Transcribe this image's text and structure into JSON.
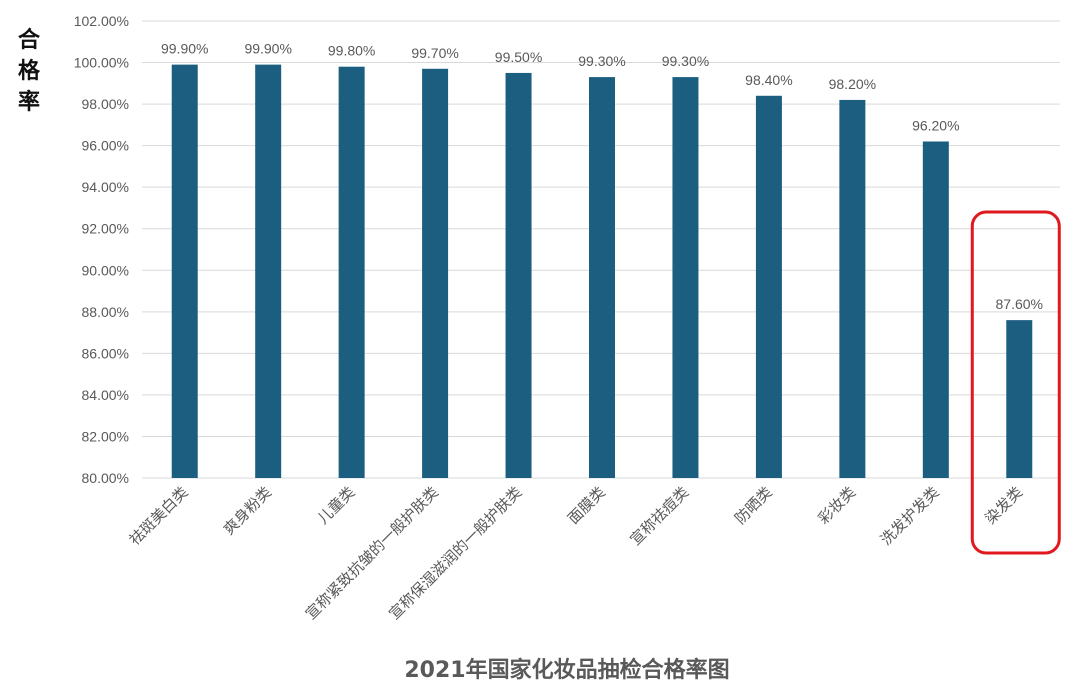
{
  "chart_data": {
    "type": "bar",
    "title": "2021年国家化妆品抽检合格率图",
    "ylabel": "合格率",
    "xlabel": "",
    "ylim": [
      80,
      102
    ],
    "ytick_step": 2,
    "ytick_labels": [
      "80.00%",
      "82.00%",
      "84.00%",
      "86.00%",
      "88.00%",
      "90.00%",
      "92.00%",
      "94.00%",
      "96.00%",
      "98.00%",
      "100.00%",
      "102.00%"
    ],
    "grid": true,
    "categories": [
      "祛斑美白类",
      "爽身粉类",
      "儿童类",
      "宣称紧致抗皱的一般护肤类",
      "宣称保湿滋润的一般护肤类",
      "面膜类",
      "宣称祛痘类",
      "防晒类",
      "彩妆类",
      "洗发护发类",
      "染发类"
    ],
    "values": [
      99.9,
      99.9,
      99.8,
      99.7,
      99.5,
      99.3,
      99.3,
      98.4,
      98.2,
      96.2,
      87.6
    ],
    "value_labels": [
      "99.90%",
      "99.90%",
      "99.80%",
      "99.70%",
      "99.50%",
      "99.30%",
      "99.30%",
      "98.40%",
      "98.20%",
      "96.20%",
      "87.60%"
    ],
    "highlight_category": "染发类",
    "colors": {
      "bar": "#1b5e80",
      "grid": "#d9d9d9",
      "highlight": "#e0191f",
      "text": "#595959"
    }
  }
}
